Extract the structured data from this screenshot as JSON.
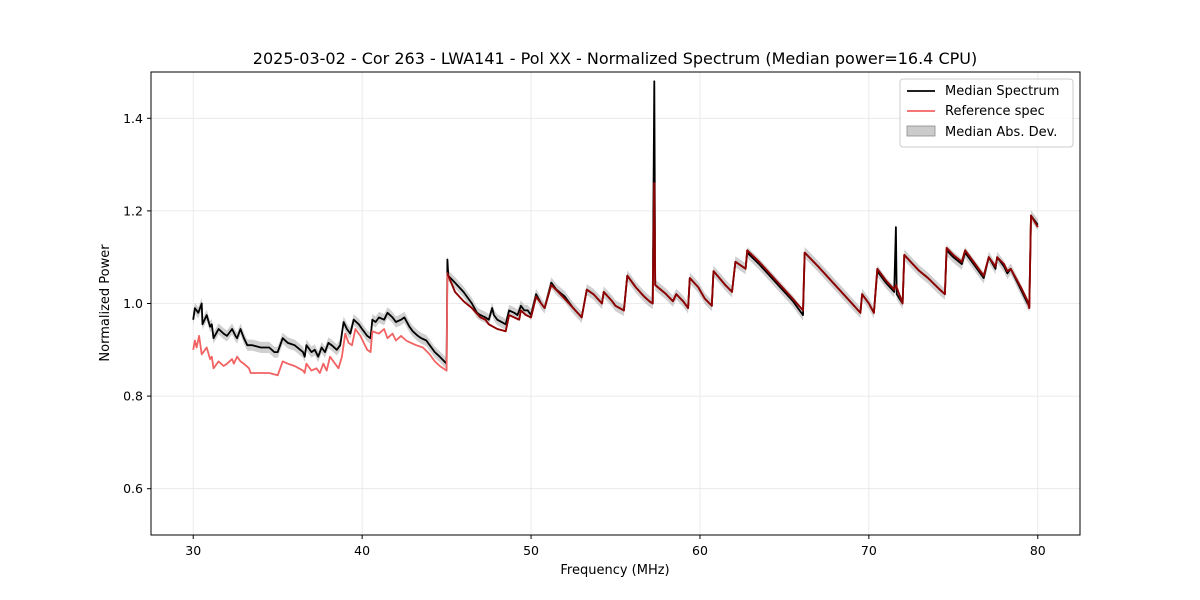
{
  "chart_data": {
    "type": "line",
    "title": "2025-03-02 - Cor 263 - LWA141 - Pol XX - Normalized Spectrum (Median power=16.4 CPU)",
    "xlabel": "Frequency (MHz)",
    "ylabel": "Normalized Power",
    "xlim": [
      27.5,
      82.5
    ],
    "ylim": [
      0.5,
      1.5
    ],
    "xticks": [
      30,
      40,
      50,
      60,
      70,
      80
    ],
    "yticks": [
      0.6,
      0.8,
      1.0,
      1.2,
      1.4
    ],
    "grid": true,
    "legend_position": "top-right",
    "legend": [
      "Median Spectrum",
      "Reference spec",
      "Median Abs. Dev."
    ],
    "series": [
      {
        "name": "Median Spectrum",
        "color": "#000000",
        "points": [
          [
            30.0,
            0.965
          ],
          [
            30.1,
            0.99
          ],
          [
            30.3,
            0.98
          ],
          [
            30.5,
            1.0
          ],
          [
            30.55,
            0.955
          ],
          [
            30.8,
            0.975
          ],
          [
            31.0,
            0.95
          ],
          [
            31.1,
            0.955
          ],
          [
            31.2,
            0.925
          ],
          [
            31.5,
            0.945
          ],
          [
            31.8,
            0.935
          ],
          [
            32.0,
            0.93
          ],
          [
            32.3,
            0.945
          ],
          [
            32.5,
            0.93
          ],
          [
            32.6,
            0.925
          ],
          [
            32.8,
            0.945
          ],
          [
            33.0,
            0.925
          ],
          [
            33.2,
            0.91
          ],
          [
            33.5,
            0.91
          ],
          [
            34.0,
            0.905
          ],
          [
            34.5,
            0.905
          ],
          [
            34.8,
            0.895
          ],
          [
            35.0,
            0.895
          ],
          [
            35.3,
            0.925
          ],
          [
            35.6,
            0.915
          ],
          [
            36.0,
            0.91
          ],
          [
            36.5,
            0.895
          ],
          [
            36.6,
            0.885
          ],
          [
            36.7,
            0.91
          ],
          [
            37.0,
            0.895
          ],
          [
            37.2,
            0.9
          ],
          [
            37.4,
            0.885
          ],
          [
            37.6,
            0.905
          ],
          [
            37.8,
            0.895
          ],
          [
            38.0,
            0.915
          ],
          [
            38.2,
            0.91
          ],
          [
            38.5,
            0.9
          ],
          [
            38.7,
            0.91
          ],
          [
            38.9,
            0.96
          ],
          [
            39.1,
            0.945
          ],
          [
            39.3,
            0.935
          ],
          [
            39.5,
            0.965
          ],
          [
            39.8,
            0.955
          ],
          [
            40.0,
            0.945
          ],
          [
            40.3,
            0.93
          ],
          [
            40.5,
            0.925
          ],
          [
            40.6,
            0.965
          ],
          [
            40.8,
            0.96
          ],
          [
            41.0,
            0.97
          ],
          [
            41.3,
            0.965
          ],
          [
            41.5,
            0.98
          ],
          [
            41.8,
            0.97
          ],
          [
            42.0,
            0.96
          ],
          [
            42.3,
            0.965
          ],
          [
            42.5,
            0.97
          ],
          [
            42.8,
            0.95
          ],
          [
            43.0,
            0.94
          ],
          [
            43.3,
            0.93
          ],
          [
            43.5,
            0.925
          ],
          [
            43.8,
            0.92
          ],
          [
            44.0,
            0.91
          ],
          [
            44.3,
            0.895
          ],
          [
            44.6,
            0.885
          ],
          [
            45.0,
            0.87
          ],
          [
            45.05,
            1.095
          ],
          [
            45.1,
            1.06
          ],
          [
            45.5,
            1.045
          ],
          [
            46.0,
            1.025
          ],
          [
            46.5,
            1.0
          ],
          [
            46.8,
            0.98
          ],
          [
            47.0,
            0.975
          ],
          [
            47.3,
            0.97
          ],
          [
            47.5,
            0.965
          ],
          [
            47.7,
            0.99
          ],
          [
            47.8,
            0.975
          ],
          [
            48.0,
            0.965
          ],
          [
            48.5,
            0.955
          ],
          [
            48.7,
            0.985
          ],
          [
            49.0,
            0.98
          ],
          [
            49.2,
            0.975
          ],
          [
            49.4,
            0.995
          ],
          [
            49.6,
            0.985
          ],
          [
            49.8,
            0.985
          ],
          [
            50.0,
            0.975
          ],
          [
            50.3,
            1.02
          ],
          [
            50.6,
            1.0
          ],
          [
            50.8,
            0.99
          ],
          [
            51.2,
            1.045
          ],
          [
            51.5,
            1.03
          ],
          [
            52.0,
            1.015
          ],
          [
            52.5,
            0.99
          ],
          [
            53.0,
            0.97
          ],
          [
            53.3,
            1.03
          ],
          [
            53.7,
            1.02
          ],
          [
            54.2,
            1.0
          ],
          [
            54.3,
            1.025
          ],
          [
            54.8,
            1.005
          ],
          [
            55.0,
            0.995
          ],
          [
            55.5,
            0.985
          ],
          [
            55.7,
            1.06
          ],
          [
            56.2,
            1.035
          ],
          [
            56.7,
            1.015
          ],
          [
            57.0,
            1.005
          ],
          [
            57.2,
            1.0
          ],
          [
            57.3,
            1.48
          ],
          [
            57.35,
            1.04
          ],
          [
            58.0,
            1.02
          ],
          [
            58.4,
            1.005
          ],
          [
            58.6,
            1.02
          ],
          [
            59.0,
            1.005
          ],
          [
            59.3,
            0.99
          ],
          [
            59.4,
            1.055
          ],
          [
            59.9,
            1.035
          ],
          [
            60.3,
            1.01
          ],
          [
            60.7,
            0.995
          ],
          [
            60.8,
            1.07
          ],
          [
            61.5,
            1.04
          ],
          [
            61.9,
            1.025
          ],
          [
            62.1,
            1.09
          ],
          [
            62.7,
            1.075
          ],
          [
            62.8,
            1.11
          ],
          [
            63.5,
            1.085
          ],
          [
            64.5,
            1.045
          ],
          [
            65.5,
            1.005
          ],
          [
            66.1,
            0.975
          ],
          [
            66.2,
            1.11
          ],
          [
            67.0,
            1.08
          ],
          [
            68.0,
            1.04
          ],
          [
            69.0,
            1.0
          ],
          [
            69.5,
            0.98
          ],
          [
            69.6,
            1.02
          ],
          [
            70.0,
            1.0
          ],
          [
            70.3,
            0.98
          ],
          [
            70.5,
            1.07
          ],
          [
            71.0,
            1.045
          ],
          [
            71.5,
            1.025
          ],
          [
            71.6,
            1.165
          ],
          [
            71.65,
            1.02
          ],
          [
            72.0,
            1.0
          ],
          [
            72.1,
            1.105
          ],
          [
            72.6,
            1.085
          ],
          [
            73.0,
            1.07
          ],
          [
            73.5,
            1.055
          ],
          [
            74.2,
            1.03
          ],
          [
            74.5,
            1.02
          ],
          [
            74.6,
            1.115
          ],
          [
            75.0,
            1.1
          ],
          [
            75.5,
            1.085
          ],
          [
            75.7,
            1.11
          ],
          [
            76.2,
            1.085
          ],
          [
            76.8,
            1.055
          ],
          [
            77.1,
            1.1
          ],
          [
            77.5,
            1.075
          ],
          [
            77.6,
            1.1
          ],
          [
            78.0,
            1.08
          ],
          [
            78.2,
            1.065
          ],
          [
            78.4,
            1.075
          ],
          [
            79.0,
            1.03
          ],
          [
            79.4,
            1.0
          ],
          [
            79.5,
            0.995
          ],
          [
            79.6,
            1.19
          ],
          [
            80.0,
            1.17
          ]
        ]
      },
      {
        "name": "Reference spec",
        "color": "#f26262",
        "points": [
          [
            30.0,
            0.9
          ],
          [
            30.1,
            0.92
          ],
          [
            30.2,
            0.905
          ],
          [
            30.35,
            0.93
          ],
          [
            30.5,
            0.89
          ],
          [
            30.8,
            0.905
          ],
          [
            31.0,
            0.88
          ],
          [
            31.1,
            0.885
          ],
          [
            31.2,
            0.86
          ],
          [
            31.5,
            0.875
          ],
          [
            31.8,
            0.865
          ],
          [
            32.0,
            0.87
          ],
          [
            32.3,
            0.88
          ],
          [
            32.4,
            0.87
          ],
          [
            32.6,
            0.885
          ],
          [
            32.8,
            0.875
          ],
          [
            33.0,
            0.87
          ],
          [
            33.3,
            0.86
          ],
          [
            33.4,
            0.85
          ],
          [
            34.0,
            0.85
          ],
          [
            34.5,
            0.85
          ],
          [
            35.0,
            0.845
          ],
          [
            35.3,
            0.875
          ],
          [
            35.6,
            0.87
          ],
          [
            36.0,
            0.865
          ],
          [
            36.5,
            0.855
          ],
          [
            36.6,
            0.85
          ],
          [
            36.7,
            0.87
          ],
          [
            37.0,
            0.855
          ],
          [
            37.3,
            0.86
          ],
          [
            37.5,
            0.85
          ],
          [
            37.7,
            0.87
          ],
          [
            37.9,
            0.855
          ],
          [
            38.1,
            0.885
          ],
          [
            38.4,
            0.87
          ],
          [
            38.6,
            0.86
          ],
          [
            38.8,
            0.885
          ],
          [
            39.0,
            0.935
          ],
          [
            39.2,
            0.915
          ],
          [
            39.4,
            0.91
          ],
          [
            39.6,
            0.945
          ],
          [
            39.9,
            0.93
          ],
          [
            40.1,
            0.915
          ],
          [
            40.3,
            0.9
          ],
          [
            40.5,
            0.895
          ],
          [
            40.6,
            0.94
          ],
          [
            41.0,
            0.935
          ],
          [
            41.3,
            0.945
          ],
          [
            41.5,
            0.925
          ],
          [
            41.8,
            0.935
          ],
          [
            42.0,
            0.92
          ],
          [
            42.3,
            0.93
          ],
          [
            42.6,
            0.92
          ],
          [
            42.9,
            0.915
          ],
          [
            43.2,
            0.91
          ],
          [
            43.6,
            0.905
          ],
          [
            44.0,
            0.89
          ],
          [
            44.3,
            0.875
          ],
          [
            44.6,
            0.865
          ],
          [
            45.0,
            0.855
          ],
          [
            45.05,
            1.065
          ],
          [
            45.5,
            1.025
          ],
          [
            46.0,
            1.005
          ],
          [
            46.5,
            0.99
          ],
          [
            47.0,
            0.97
          ],
          [
            47.3,
            0.965
          ],
          [
            47.5,
            0.955
          ],
          [
            48.0,
            0.945
          ],
          [
            48.5,
            0.94
          ],
          [
            48.7,
            0.975
          ],
          [
            49.0,
            0.97
          ],
          [
            49.3,
            0.965
          ],
          [
            49.4,
            0.985
          ],
          [
            49.7,
            0.975
          ],
          [
            50.0,
            0.97
          ],
          [
            50.3,
            1.015
          ],
          [
            50.6,
            1.0
          ],
          [
            50.8,
            0.99
          ],
          [
            51.2,
            1.04
          ],
          [
            51.6,
            1.025
          ],
          [
            52.0,
            1.01
          ],
          [
            52.5,
            0.99
          ],
          [
            53.0,
            0.97
          ],
          [
            53.3,
            1.03
          ],
          [
            53.7,
            1.02
          ],
          [
            54.2,
            1.0
          ],
          [
            54.3,
            1.025
          ],
          [
            54.8,
            1.005
          ],
          [
            55.0,
            0.995
          ],
          [
            55.5,
            0.985
          ],
          [
            55.7,
            1.06
          ],
          [
            56.2,
            1.035
          ],
          [
            56.7,
            1.015
          ],
          [
            57.0,
            1.005
          ],
          [
            57.2,
            1.0
          ],
          [
            57.3,
            1.26
          ],
          [
            57.35,
            1.04
          ],
          [
            58.0,
            1.02
          ],
          [
            58.4,
            1.005
          ],
          [
            58.6,
            1.02
          ],
          [
            59.0,
            1.005
          ],
          [
            59.3,
            0.99
          ],
          [
            59.4,
            1.055
          ],
          [
            59.9,
            1.035
          ],
          [
            60.3,
            1.01
          ],
          [
            60.7,
            0.995
          ],
          [
            60.8,
            1.07
          ],
          [
            61.5,
            1.04
          ],
          [
            61.9,
            1.025
          ],
          [
            62.1,
            1.09
          ],
          [
            62.7,
            1.075
          ],
          [
            62.8,
            1.115
          ],
          [
            63.5,
            1.09
          ],
          [
            64.5,
            1.05
          ],
          [
            65.5,
            1.01
          ],
          [
            66.1,
            0.985
          ],
          [
            66.2,
            1.11
          ],
          [
            67.0,
            1.08
          ],
          [
            68.0,
            1.04
          ],
          [
            69.0,
            1.0
          ],
          [
            69.5,
            0.98
          ],
          [
            69.6,
            1.02
          ],
          [
            70.0,
            1.0
          ],
          [
            70.3,
            0.98
          ],
          [
            70.5,
            1.075
          ],
          [
            71.0,
            1.05
          ],
          [
            71.5,
            1.03
          ],
          [
            71.6,
            1.04
          ],
          [
            72.0,
            1.0
          ],
          [
            72.1,
            1.105
          ],
          [
            72.6,
            1.085
          ],
          [
            73.0,
            1.07
          ],
          [
            73.5,
            1.055
          ],
          [
            74.2,
            1.03
          ],
          [
            74.5,
            1.02
          ],
          [
            74.6,
            1.12
          ],
          [
            75.0,
            1.105
          ],
          [
            75.5,
            1.09
          ],
          [
            75.7,
            1.115
          ],
          [
            76.2,
            1.09
          ],
          [
            76.8,
            1.06
          ],
          [
            77.1,
            1.1
          ],
          [
            77.5,
            1.08
          ],
          [
            77.6,
            1.1
          ],
          [
            78.0,
            1.085
          ],
          [
            78.2,
            1.07
          ],
          [
            78.4,
            1.075
          ],
          [
            79.0,
            1.035
          ],
          [
            79.4,
            1.005
          ],
          [
            79.5,
            0.99
          ],
          [
            79.6,
            1.19
          ],
          [
            80.0,
            1.165
          ]
        ]
      }
    ],
    "band": {
      "name": "Median Abs. Dev.",
      "color": "#a9a9a9",
      "half_width": 0.012
    }
  }
}
